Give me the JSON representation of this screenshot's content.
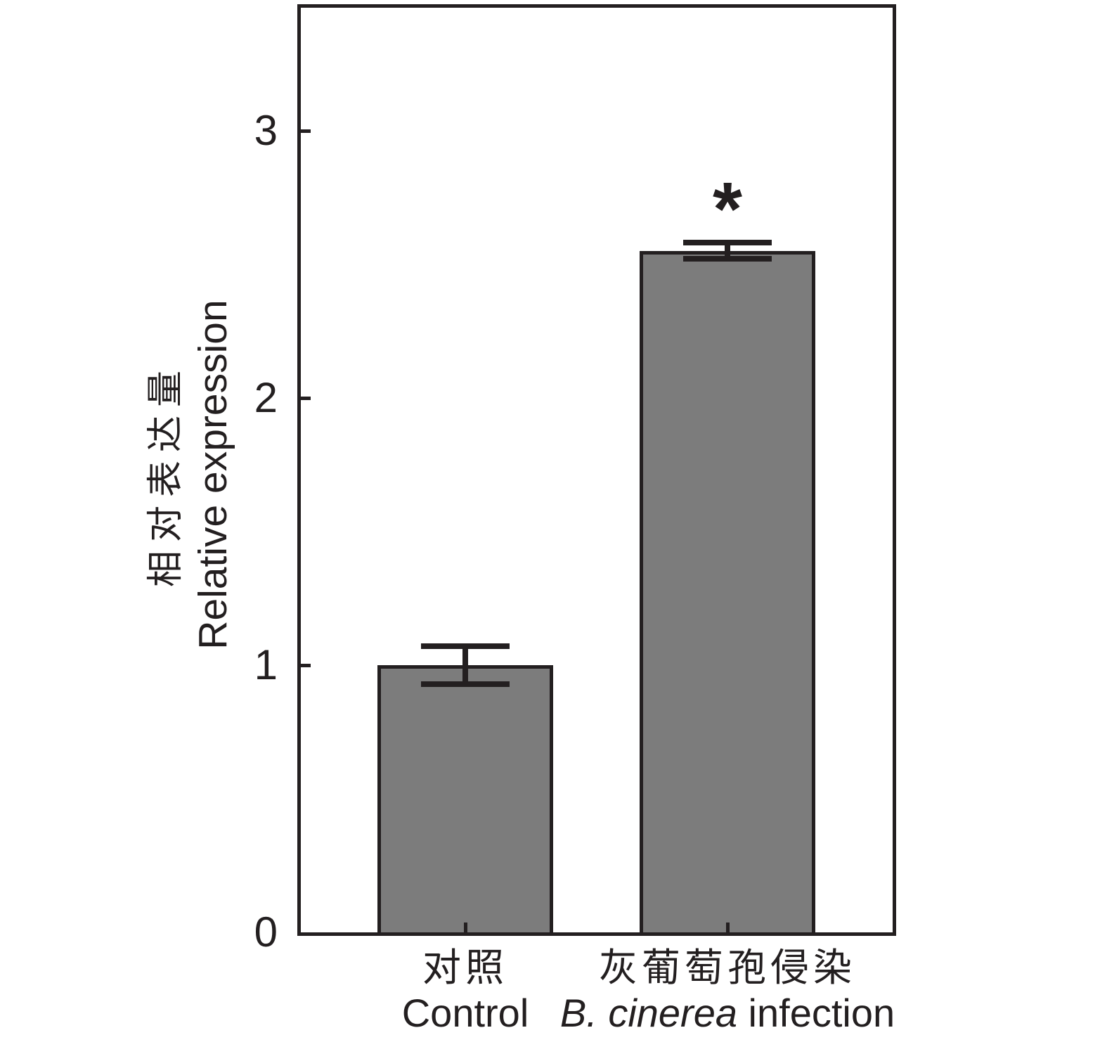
{
  "chart_data": {
    "type": "bar",
    "title": "",
    "ylabel_zh": "相对表达量",
    "ylabel_en": "Relative expression",
    "categories": [
      {
        "zh": "对照",
        "en_italic": "",
        "en": "Control"
      },
      {
        "zh": "灰葡萄孢侵染",
        "en_italic": "B. cinerea",
        "en": " infection"
      }
    ],
    "values": [
      1.0,
      2.55
    ],
    "errors": [
      0.07,
      0.03
    ],
    "significance": [
      "",
      "*"
    ],
    "yticks": [
      0,
      1,
      2,
      3
    ],
    "ylim": [
      0,
      3
    ],
    "grid": false,
    "legend": "none",
    "bar_color": "#7c7c7c",
    "axis_color": "#231f20"
  }
}
